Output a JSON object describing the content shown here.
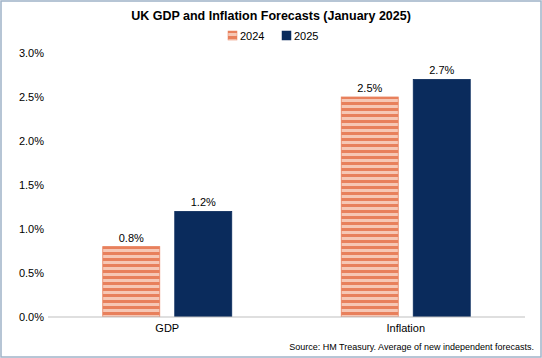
{
  "chart_data": {
    "type": "bar",
    "title": "UK GDP and Inflation Forecasts (January 2025)",
    "source": "Source: HM Treasury. Average of new independent forecasts.",
    "categories": [
      "GDP",
      "Inflation"
    ],
    "series": [
      {
        "name": "2024",
        "color": "#e8805c",
        "values": [
          0.8,
          2.5
        ],
        "value_labels": [
          "0.8%",
          "2.5%"
        ]
      },
      {
        "name": "2025",
        "color": "#0a2b5c",
        "values": [
          1.2,
          2.7
        ],
        "value_labels": [
          "1.2%",
          "2.7%"
        ]
      }
    ],
    "ylim": [
      0,
      3
    ],
    "yticks": [
      {
        "value": 0,
        "label": "0.0%"
      },
      {
        "value": 0.5,
        "label": "0.5%"
      },
      {
        "value": 1,
        "label": "1.0%"
      },
      {
        "value": 1.5,
        "label": "1.5%"
      },
      {
        "value": 2,
        "label": "2.0%"
      },
      {
        "value": 2.5,
        "label": "2.5%"
      },
      {
        "value": 3,
        "label": "3.0%"
      }
    ],
    "grid": false,
    "legend": "top",
    "data_labels": true
  }
}
